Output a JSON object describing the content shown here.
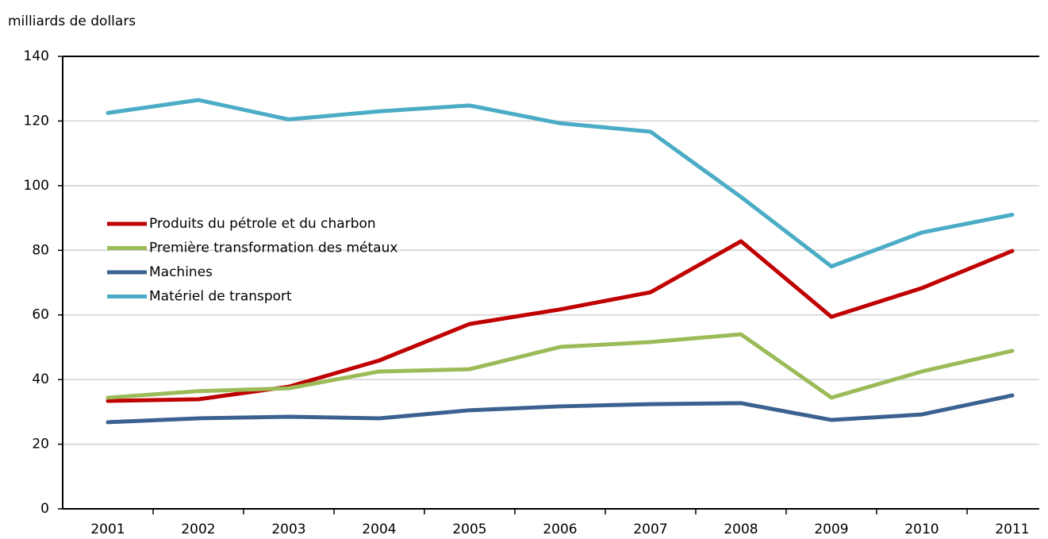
{
  "chart_data": {
    "type": "line",
    "y_label": "milliards de dollars",
    "categories": [
      "2001",
      "2002",
      "2003",
      "2004",
      "2005",
      "2006",
      "2007",
      "2008",
      "2009",
      "2010",
      "2011"
    ],
    "series": [
      {
        "name": "Produits du pétrole et du charbon",
        "color": "#c00000",
        "values": [
          33.4,
          33.9,
          37.8,
          45.9,
          57.2,
          61.7,
          67,
          82.8,
          59.4,
          68.3,
          79.8
        ]
      },
      {
        "name": "Première transformation des métaux",
        "color": "#9bbb59",
        "values": [
          34.4,
          36.4,
          37.3,
          42.5,
          43.2,
          50.1,
          51.6,
          54,
          34.4,
          42.5,
          48.9
        ]
      },
      {
        "name": "Machines",
        "color": "#3b6190",
        "values": [
          26.8,
          28,
          28.5,
          28,
          30.5,
          31.7,
          32.4,
          32.7,
          27.5,
          29.2,
          35.1
        ]
      },
      {
        "name": "Matériel de transport",
        "color": "#4bacc6",
        "values": [
          122.5,
          126.5,
          120.5,
          123,
          124.8,
          119.3,
          116.7,
          96.5,
          75,
          85.5,
          91
        ]
      }
    ],
    "ylim": [
      0,
      140
    ],
    "yticks": [
      0,
      20,
      40,
      60,
      80,
      100,
      120,
      140
    ],
    "grid": true,
    "legend": "left"
  }
}
